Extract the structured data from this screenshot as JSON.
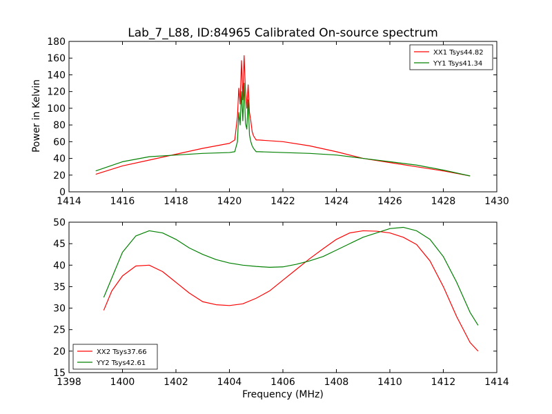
{
  "figure": {
    "title": "Lab_7_L88, ID:84965 Calibrated On-source spectrum",
    "xlabel": "Frequency (MHz)"
  },
  "chart_data": [
    {
      "type": "line",
      "title": "Lab_7_L88, ID:84965 Calibrated On-source spectrum",
      "xlabel": "",
      "ylabel": "Power in Kelvin",
      "xlim": [
        1414,
        1430
      ],
      "ylim": [
        0,
        180
      ],
      "xticks": [
        1414,
        1416,
        1418,
        1420,
        1422,
        1424,
        1426,
        1428,
        1430
      ],
      "yticks": [
        0,
        20,
        40,
        60,
        80,
        100,
        120,
        140,
        160,
        180
      ],
      "grid": false,
      "legend_position": "top-right",
      "series": [
        {
          "name": "XX1 Tsys44.82",
          "color": "#ff0000",
          "x": [
            1415.0,
            1416.0,
            1417.0,
            1418.0,
            1419.0,
            1420.0,
            1420.2,
            1420.3,
            1420.35,
            1420.4,
            1420.45,
            1420.5,
            1420.55,
            1420.6,
            1420.65,
            1420.7,
            1420.75,
            1420.8,
            1420.85,
            1420.9,
            1421.0,
            1421.1,
            1422.0,
            1423.0,
            1424.0,
            1425.0,
            1426.0,
            1427.0,
            1428.0,
            1429.0
          ],
          "y": [
            21,
            31,
            38,
            45,
            52,
            58,
            62,
            90,
            124,
            105,
            157,
            110,
            163,
            120,
            100,
            128,
            95,
            85,
            72,
            67,
            62,
            62,
            60,
            55,
            48,
            40,
            35,
            30,
            25,
            19
          ]
        },
        {
          "name": "YY1 Tsys41.34",
          "color": "#008000",
          "x": [
            1415.0,
            1416.0,
            1417.0,
            1418.0,
            1419.0,
            1420.0,
            1420.2,
            1420.3,
            1420.35,
            1420.4,
            1420.45,
            1420.5,
            1420.55,
            1420.6,
            1420.65,
            1420.7,
            1420.75,
            1420.8,
            1420.85,
            1420.9,
            1421.0,
            1421.1,
            1422.0,
            1423.0,
            1424.0,
            1425.0,
            1426.0,
            1427.0,
            1428.0,
            1429.0
          ],
          "y": [
            25,
            36,
            42,
            44,
            46,
            47,
            48,
            60,
            95,
            80,
            120,
            85,
            130,
            82,
            75,
            110,
            68,
            60,
            55,
            52,
            48,
            48,
            47,
            46,
            44,
            40,
            36,
            32,
            26,
            19
          ]
        }
      ]
    },
    {
      "type": "line",
      "title": "",
      "xlabel": "Frequency (MHz)",
      "ylabel": "",
      "xlim": [
        1398,
        1414
      ],
      "ylim": [
        15,
        50
      ],
      "xticks": [
        1398,
        1400,
        1402,
        1404,
        1406,
        1408,
        1410,
        1412,
        1414
      ],
      "yticks": [
        15,
        20,
        25,
        30,
        35,
        40,
        45,
        50
      ],
      "grid": false,
      "legend_position": "bottom-left",
      "series": [
        {
          "name": "XX2 Tsys37.66",
          "color": "#ff0000",
          "x": [
            1399.3,
            1399.6,
            1400.0,
            1400.5,
            1401.0,
            1401.5,
            1402.0,
            1402.5,
            1403.0,
            1403.5,
            1404.0,
            1404.5,
            1405.0,
            1405.5,
            1406.0,
            1406.5,
            1407.0,
            1407.5,
            1408.0,
            1408.5,
            1409.0,
            1409.5,
            1410.0,
            1410.5,
            1411.0,
            1411.5,
            1412.0,
            1412.5,
            1413.0,
            1413.3
          ],
          "y": [
            29.5,
            34,
            37.5,
            39.8,
            40.0,
            38.5,
            36.0,
            33.5,
            31.5,
            30.8,
            30.6,
            31.0,
            32.3,
            34.0,
            36.5,
            39.0,
            41.5,
            43.8,
            46.0,
            47.5,
            48.0,
            47.9,
            47.5,
            46.5,
            44.8,
            41.0,
            35.0,
            28.0,
            22.0,
            20.0
          ]
        },
        {
          "name": "YY2 Tsys42.61",
          "color": "#008000",
          "x": [
            1399.3,
            1399.6,
            1400.0,
            1400.5,
            1401.0,
            1401.5,
            1402.0,
            1402.5,
            1403.0,
            1403.5,
            1404.0,
            1404.5,
            1405.0,
            1405.5,
            1406.0,
            1406.5,
            1407.0,
            1407.5,
            1408.0,
            1408.5,
            1409.0,
            1409.5,
            1410.0,
            1410.5,
            1411.0,
            1411.5,
            1412.0,
            1412.5,
            1413.0,
            1413.3
          ],
          "y": [
            32.5,
            37,
            43.0,
            46.8,
            48.0,
            47.5,
            46.0,
            44.0,
            42.5,
            41.3,
            40.5,
            40.0,
            39.7,
            39.5,
            39.6,
            40.2,
            41.0,
            42.0,
            43.5,
            45.0,
            46.5,
            47.5,
            48.5,
            48.8,
            48.0,
            46.0,
            42.0,
            36.0,
            29.0,
            26.0
          ]
        }
      ]
    }
  ]
}
